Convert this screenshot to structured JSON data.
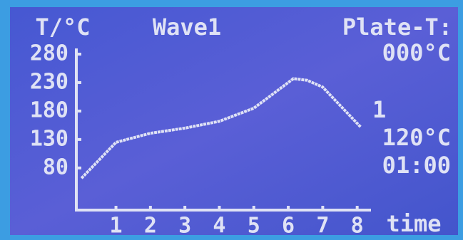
{
  "chart_data": {
    "type": "line",
    "title": "Wave1",
    "y_label": "T/°C",
    "x_label": "time",
    "x": [
      0,
      1,
      2,
      3,
      4,
      5,
      5.6,
      6.15,
      6.55,
      7,
      8.1
    ],
    "values": [
      62,
      125,
      141,
      150,
      162,
      185,
      212,
      237,
      234,
      222,
      152
    ],
    "color": "#dfe2f5",
    "xlim": [
      -0.15,
      8.4
    ],
    "xticks": [
      1,
      2,
      3,
      4,
      5,
      6,
      7,
      8
    ],
    "ylim": [
      6,
      290
    ],
    "yticks": [
      80,
      130,
      180,
      230,
      280
    ],
    "side_panel": {
      "label": "Plate-T:",
      "plate_temp": "000°C",
      "step": "1",
      "set_temp": "120°C",
      "time": "01:00"
    }
  }
}
